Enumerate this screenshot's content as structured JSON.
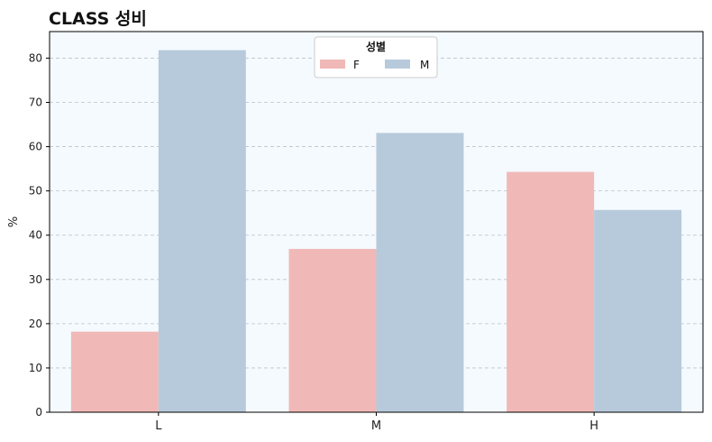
{
  "chart_data": {
    "type": "bar",
    "title": "CLASS 성비",
    "xlabel": "",
    "ylabel": "%",
    "categories": [
      "L",
      "M",
      "H"
    ],
    "series": [
      {
        "name": "F",
        "values": [
          18.2,
          36.9,
          54.3
        ],
        "color": "#f0b9b7"
      },
      {
        "name": "M",
        "values": [
          81.8,
          63.1,
          45.7
        ],
        "color": "#b7cadb"
      }
    ],
    "ylim": [
      0,
      86
    ],
    "yticks": [
      0,
      10,
      20,
      30,
      40,
      50,
      60,
      70,
      80
    ],
    "grid": true,
    "legend": {
      "title": "성별",
      "placement": "top-center"
    },
    "background": "#f5faff"
  }
}
